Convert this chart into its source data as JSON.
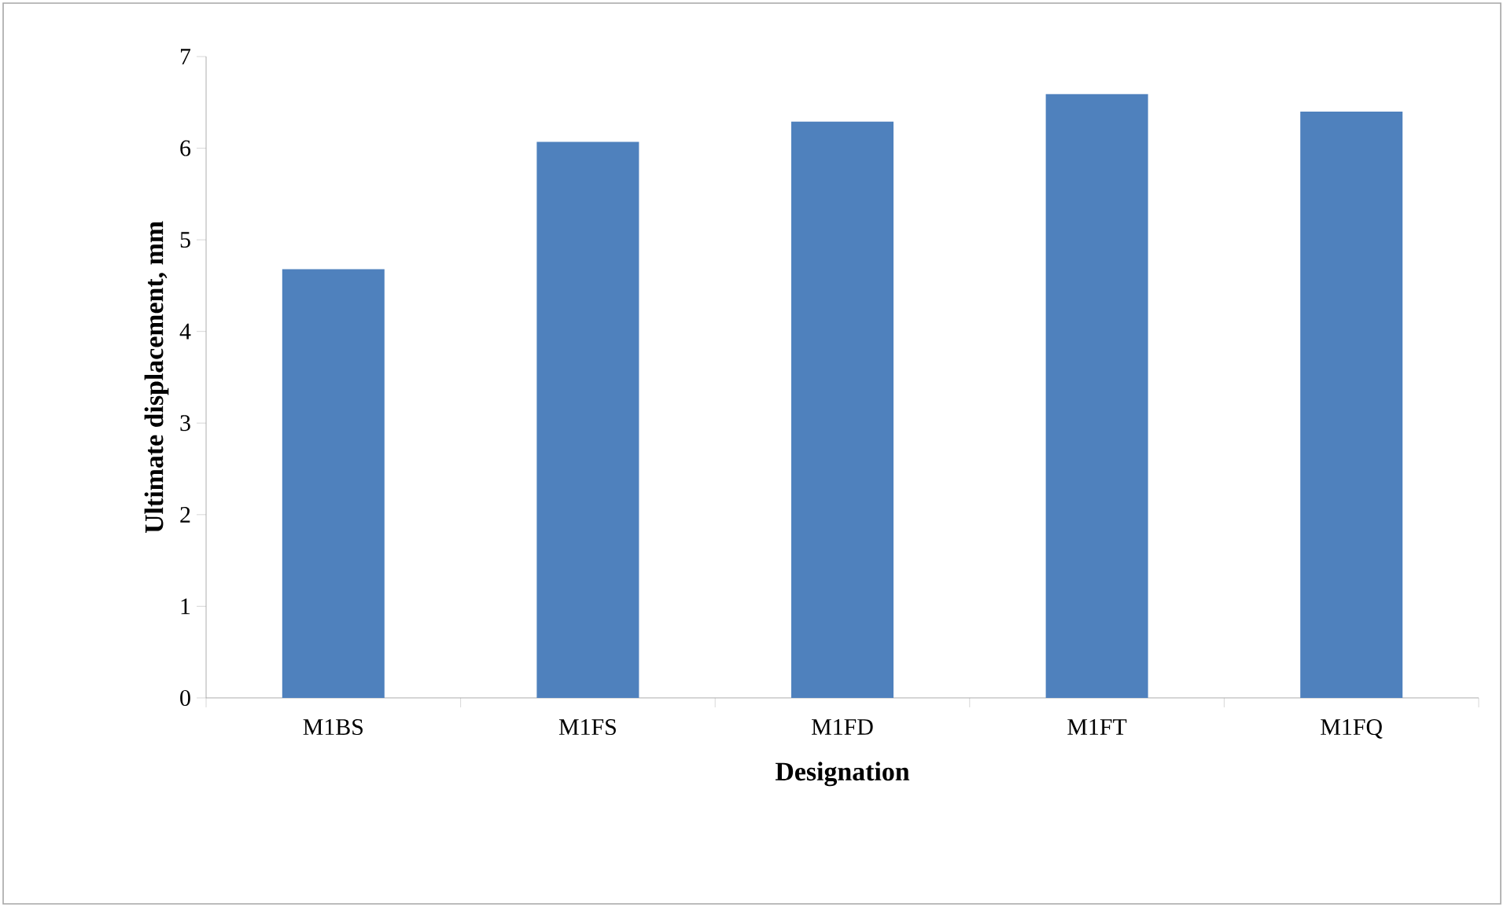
{
  "chart_data": {
    "type": "bar",
    "xlabel": "Designation",
    "ylabel": "Ultimate displacement, mm",
    "categories": [
      "M1BS",
      "M1FS",
      "M1FD",
      "M1FT",
      "M1FQ"
    ],
    "values": [
      4.68,
      6.07,
      6.29,
      6.59,
      6.4
    ],
    "color": "#4f81bd",
    "ylim": [
      0,
      7
    ],
    "yticks": [
      0,
      1,
      2,
      3,
      4,
      5,
      6,
      7
    ]
  }
}
